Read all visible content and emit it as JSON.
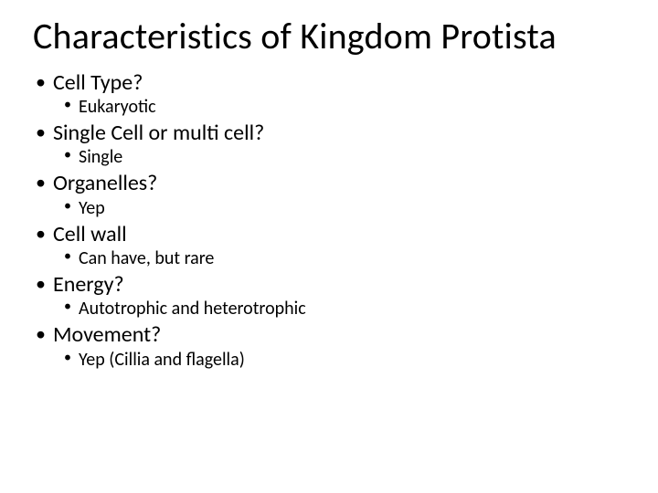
{
  "slide": {
    "title": "Characteristics of Kingdom Protista",
    "background_color": "#ffffff",
    "text_color": "#000000",
    "title_fontsize": 40,
    "l1_fontsize": 24,
    "l2_fontsize": 20,
    "items": [
      {
        "label": "Cell Type?",
        "sub": [
          {
            "label": "Eukaryotic"
          }
        ]
      },
      {
        "label": "Single Cell or multi cell?",
        "sub": [
          {
            "label": "Single"
          }
        ]
      },
      {
        "label": "Organelles?",
        "sub": [
          {
            "label": "Yep"
          }
        ]
      },
      {
        "label": "Cell wall",
        "sub": [
          {
            "label": "Can have, but rare"
          }
        ]
      },
      {
        "label": "Energy?",
        "sub": [
          {
            "label": "Autotrophic and heterotrophic"
          }
        ]
      },
      {
        "label": "Movement?",
        "sub": [
          {
            "label": "Yep (Cillia and flagella)"
          }
        ]
      }
    ]
  }
}
